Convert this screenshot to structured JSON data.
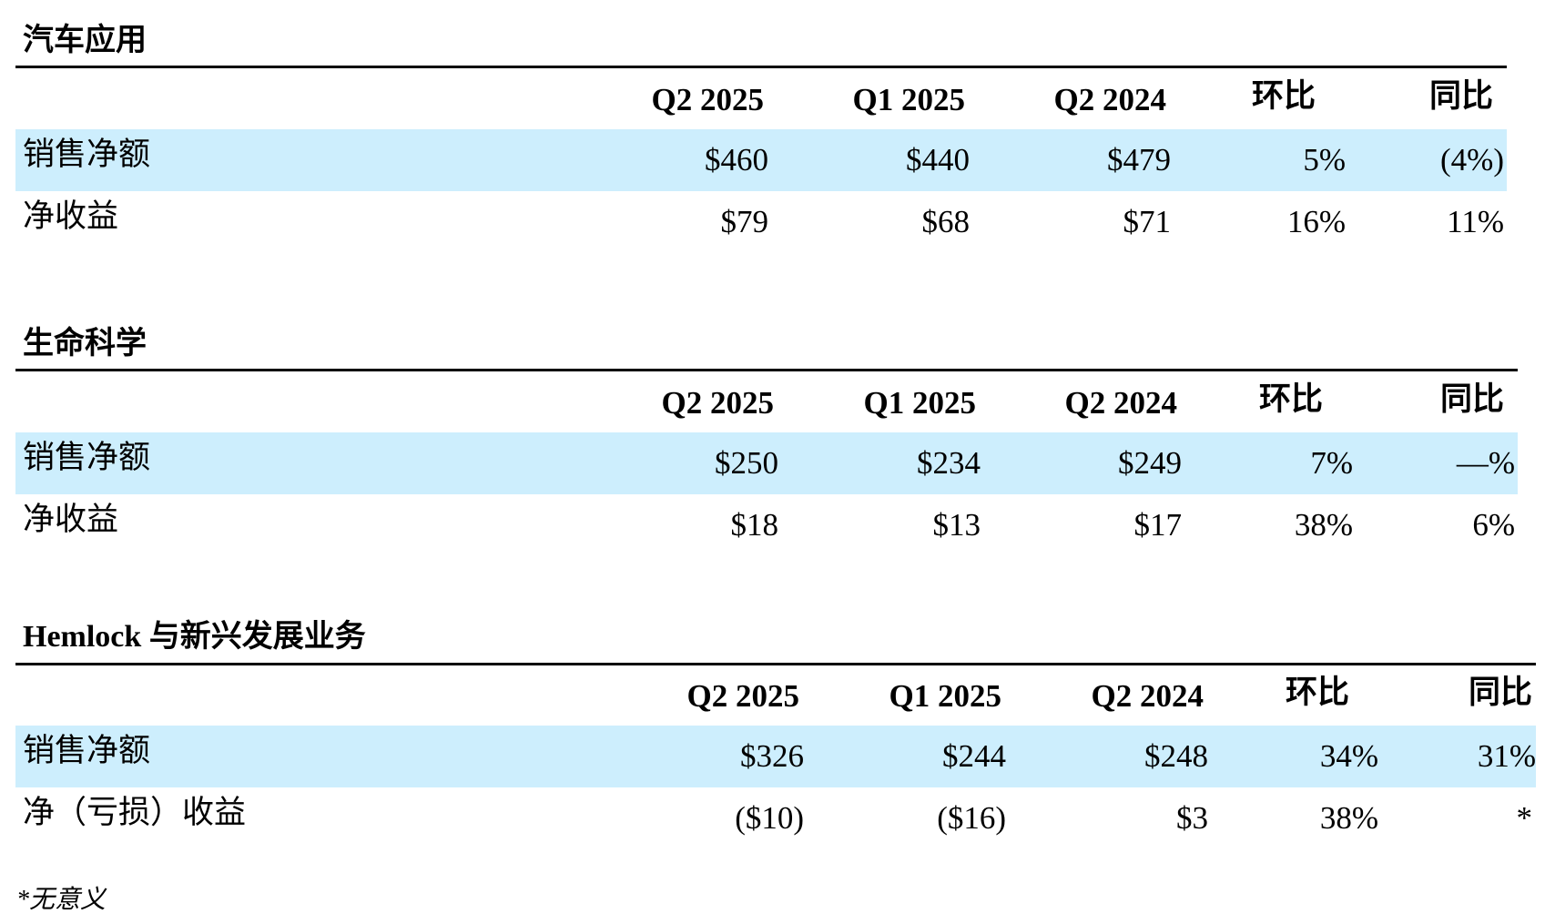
{
  "sections": [
    {
      "title": "汽车应用",
      "headers": [
        "Q2 2025",
        "Q1 2025",
        "Q2 2024",
        "环比",
        "同比"
      ],
      "rows": [
        {
          "label": "销售净额",
          "values": [
            "$460",
            "$440",
            "$479",
            "5%",
            "(4%)"
          ]
        },
        {
          "label": "净收益",
          "values": [
            "$79",
            "$68",
            "$71",
            "16%",
            "11%"
          ]
        }
      ]
    },
    {
      "title": "生命科学",
      "headers": [
        "Q2 2025",
        "Q1 2025",
        "Q2 2024",
        "环比",
        "同比"
      ],
      "rows": [
        {
          "label": "销售净额",
          "values": [
            "$250",
            "$234",
            "$249",
            "7%",
            "—%"
          ]
        },
        {
          "label": "净收益",
          "values": [
            "$18",
            "$13",
            "$17",
            "38%",
            "6%"
          ]
        }
      ]
    },
    {
      "title": "Hemlock 与新兴发展业务",
      "headers": [
        "Q2 2025",
        "Q1 2025",
        "Q2 2024",
        "环比",
        "同比"
      ],
      "rows": [
        {
          "label": "销售净额",
          "values": [
            "$326",
            "$244",
            "$248",
            "34%",
            "31%"
          ]
        },
        {
          "label": "净（亏损）收益",
          "values": [
            "($10)",
            "($16)",
            "$3",
            "38%",
            "*"
          ]
        }
      ]
    }
  ],
  "footnote": "*无意义"
}
